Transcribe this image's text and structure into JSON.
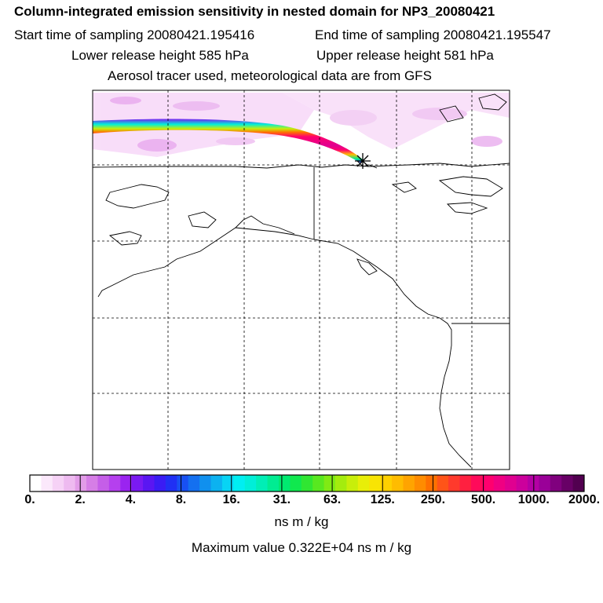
{
  "header": {
    "title": "Column-integrated emission sensitivity in nested domain for NP3_20080421",
    "start_time": "Start time of sampling 20080421.195416",
    "end_time": "End time of sampling 20080421.195547",
    "lower_release": "Lower release height  585 hPa",
    "upper_release": "Upper release height  581 hPa",
    "tracer_info": "Aerosol tracer used, meteorological data are from GFS"
  },
  "colorbar": {
    "tick_labels": [
      "0.",
      "2.",
      "4.",
      "8.",
      "16.",
      "31.",
      "63.",
      "125.",
      "250.",
      "500.",
      "1000.",
      "2000."
    ],
    "colors": [
      "#ffffff",
      "#fbe8fb",
      "#f6d2f6",
      "#eebaf0",
      "#e29ce8",
      "#d67ee6",
      "#c55ee8",
      "#b540ee",
      "#9a24f0",
      "#7a1af2",
      "#5a16f2",
      "#3a1cf4",
      "#2030f4",
      "#1850f2",
      "#1470f0",
      "#1090ee",
      "#0cb2f0",
      "#08d4f4",
      "#00eef2",
      "#00eed8",
      "#00eeb6",
      "#00ec92",
      "#00ea70",
      "#10e84e",
      "#30e632",
      "#58e820",
      "#80ea14",
      "#a4ec0e",
      "#c8ee0a",
      "#e8ee08",
      "#f8e404",
      "#ffd000",
      "#ffbc00",
      "#ffa400",
      "#ff8c00",
      "#ff7000",
      "#ff5418",
      "#ff3a2c",
      "#ff2040",
      "#ff0a5a",
      "#ff006e",
      "#f00082",
      "#e00090",
      "#cc009c",
      "#b400a4",
      "#9a0098",
      "#80007e",
      "#680066",
      "#520050"
    ],
    "units": "ns m / kg",
    "max_value": "Maximum value  0.322E+04 ns m / kg"
  },
  "map": {
    "release_marker": "asterisk",
    "grid": true
  }
}
